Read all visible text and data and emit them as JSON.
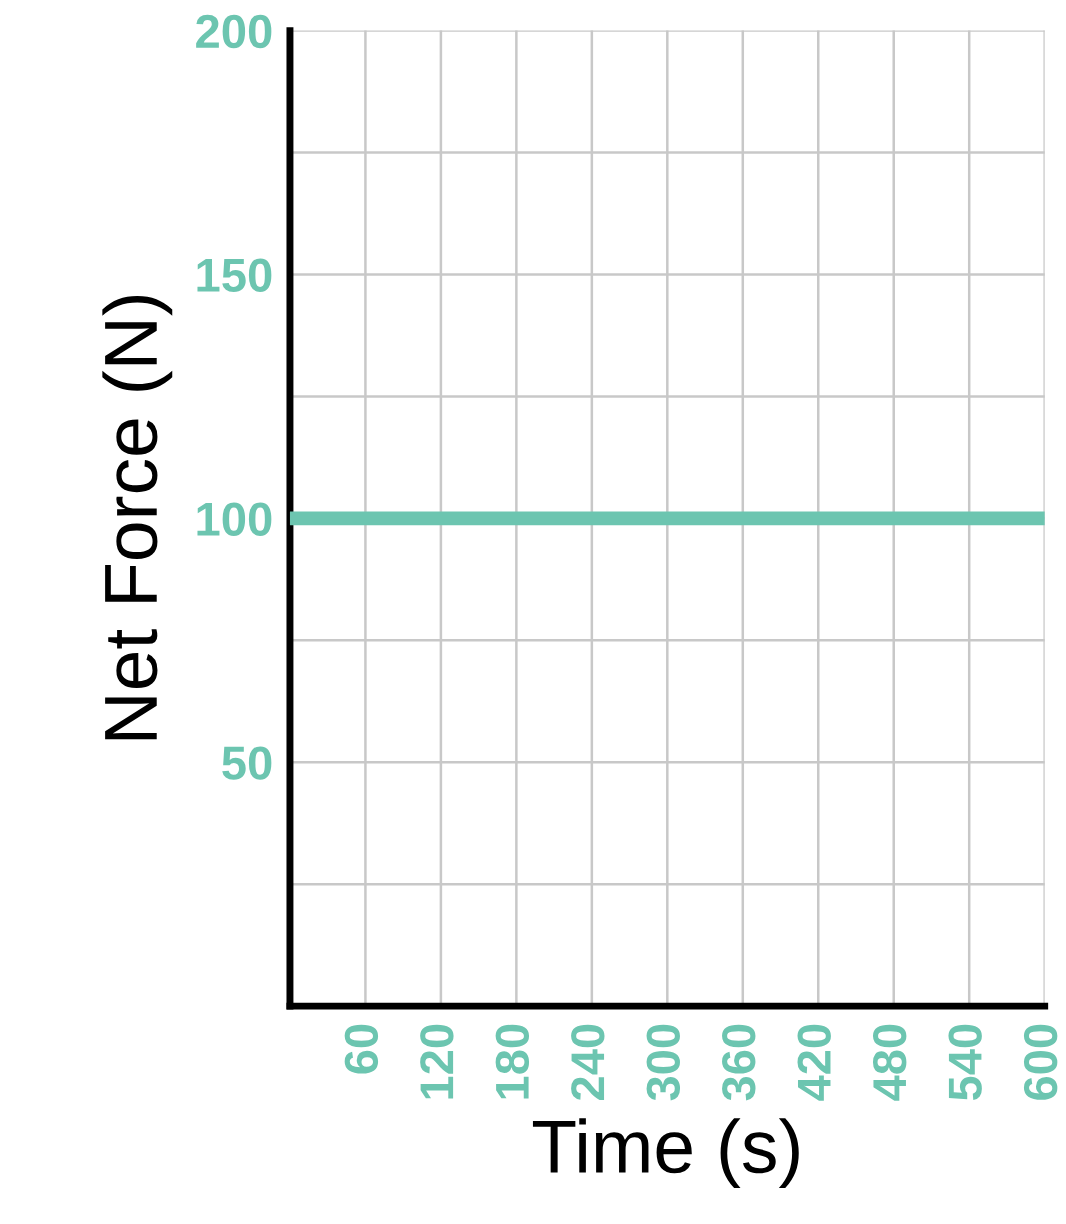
{
  "chart_data": {
    "type": "line",
    "xlabel": "Time (s)",
    "ylabel": "Net Force (N)",
    "xlim": [
      0,
      600
    ],
    "ylim": [
      0,
      200
    ],
    "xticks": [
      60,
      120,
      180,
      240,
      300,
      360,
      420,
      480,
      540,
      600
    ],
    "yticks": [
      {
        "value": 25,
        "label": null
      },
      50,
      {
        "value": 75,
        "label": null
      },
      100,
      {
        "value": 125,
        "label": null
      },
      150,
      {
        "value": 175,
        "label": null
      },
      200
    ],
    "grid": true,
    "legend": false,
    "marker": "none",
    "line_style": "solid",
    "series": [
      {
        "x": [
          0,
          600
        ],
        "values": [
          100,
          100
        ],
        "color": "#6cc5b0"
      }
    ]
  }
}
